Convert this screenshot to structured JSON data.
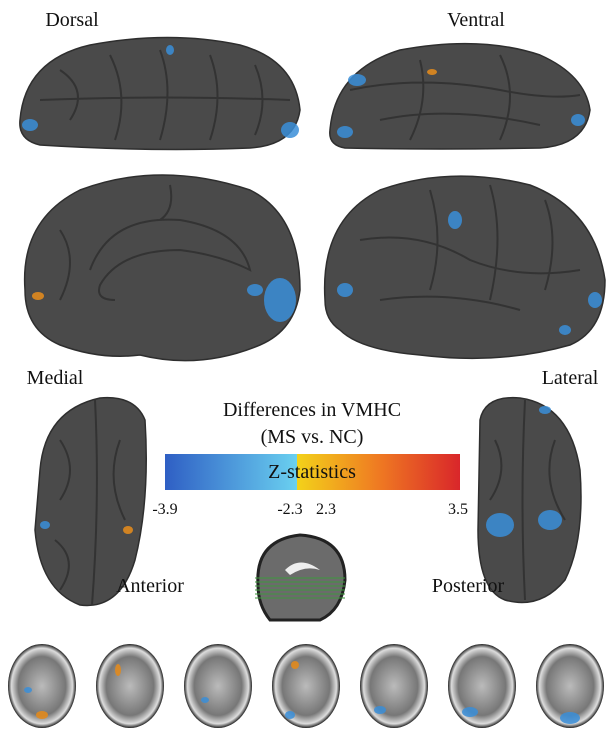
{
  "views": {
    "dorsal": "Dorsal",
    "ventral": "Ventral",
    "medial": "Medial",
    "lateral": "Lateral",
    "anterior": "Anterior",
    "posterior": "Posterior"
  },
  "colorbar": {
    "title": "Differences in VMHC",
    "subtitle": "(MS vs. NC)",
    "label": "Z-statistics",
    "ticks": [
      -3.9,
      -2.3,
      2.3,
      3.5
    ]
  }
}
